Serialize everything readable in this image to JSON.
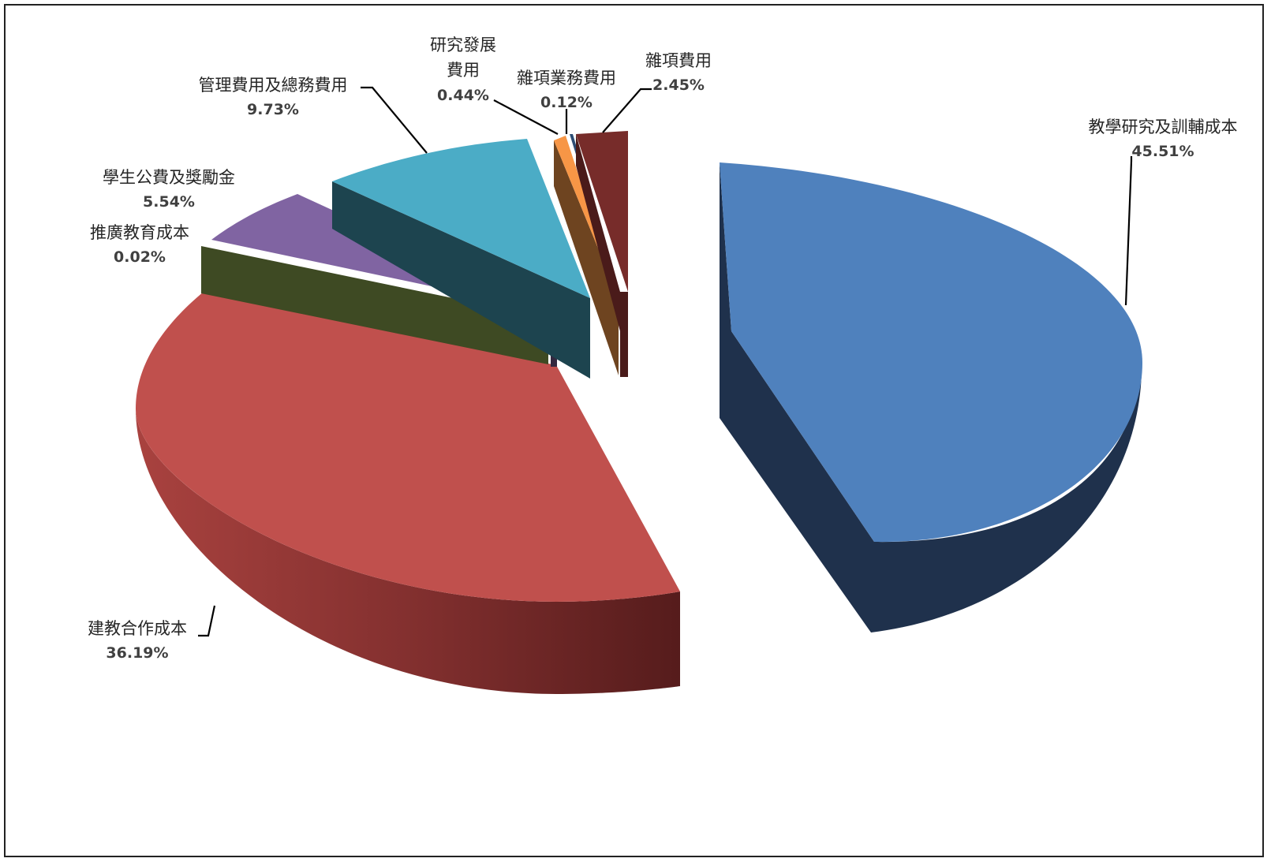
{
  "chart_data": {
    "type": "pie",
    "style": "3d-exploded",
    "title": "",
    "slices": [
      {
        "label": "教學研究及訓輔成本",
        "value": 45.51,
        "pct_text": "45.51%",
        "color": "#4f81bd",
        "side_color": "#1f314c"
      },
      {
        "label": "建教合作成本",
        "value": 36.19,
        "pct_text": "36.19%",
        "color": "#c0504d",
        "side_color": "#742f2d"
      },
      {
        "label": "推廣教育成本",
        "value": 0.02,
        "pct_text": "0.02%",
        "color": "#9bbb59",
        "side_color": "#3e4a23"
      },
      {
        "label": "學生公費及獎勵金",
        "value": 5.54,
        "pct_text": "5.54%",
        "color": "#8064a2",
        "side_color": "#33283f"
      },
      {
        "label": "管理費用及總務費用",
        "value": 9.73,
        "pct_text": "9.73%",
        "color": "#4bacc6",
        "side_color": "#1d444f"
      },
      {
        "label": "研究發展費用",
        "label_lines": [
          "研究發展",
          "費用"
        ],
        "value": 0.44,
        "pct_text": "0.44%",
        "color": "#f79646",
        "side_color": "#6e4420"
      },
      {
        "label": "雜項業務費用",
        "value": 0.12,
        "pct_text": "0.12%",
        "color": "#2c4d75",
        "side_color": "#1a2e46"
      },
      {
        "label": "雜項費用",
        "value": 2.45,
        "pct_text": "2.45%",
        "color": "#772c2a",
        "side_color": "#4a1b1a"
      }
    ]
  }
}
